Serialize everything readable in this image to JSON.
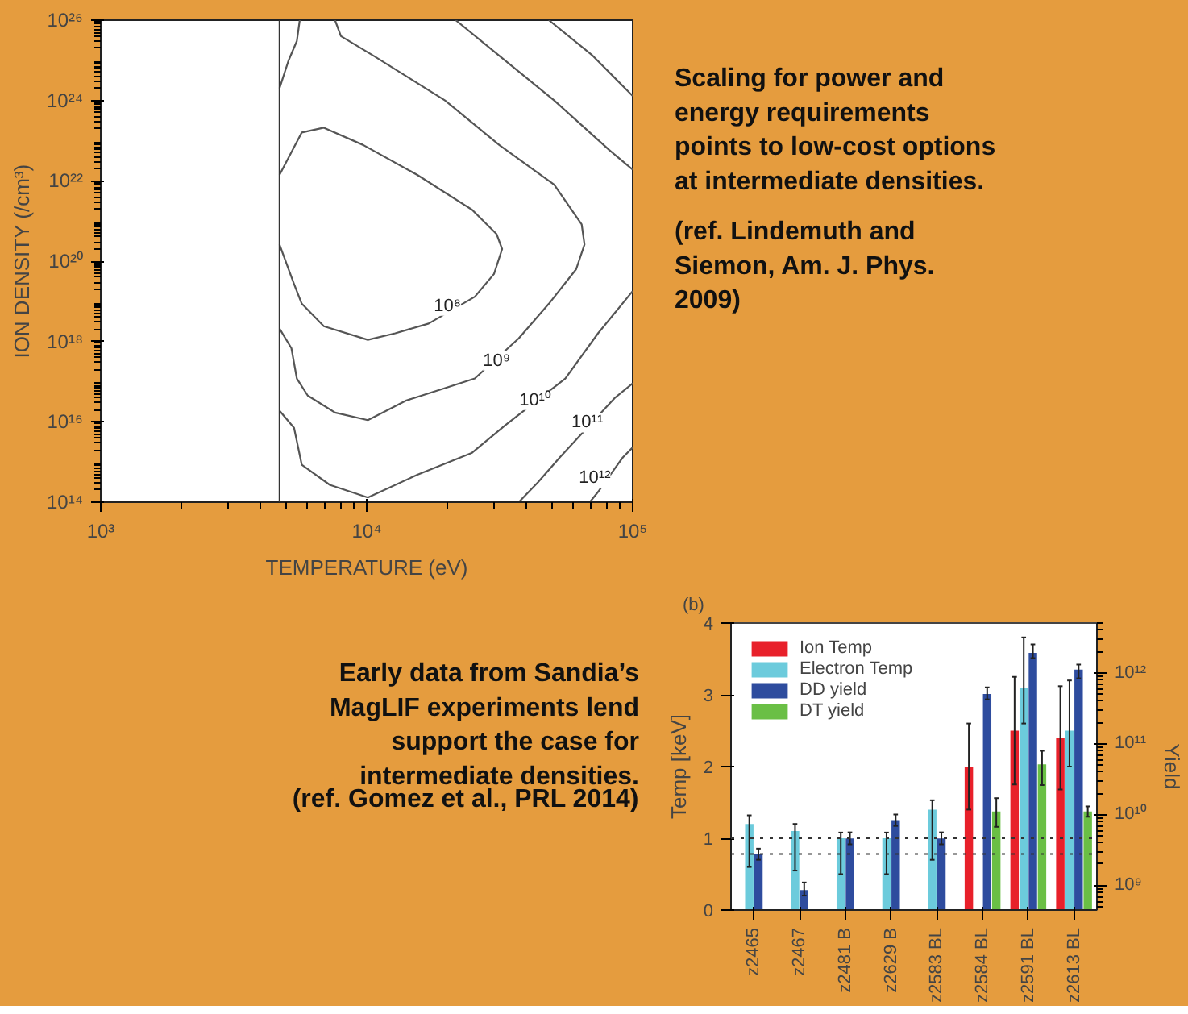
{
  "chart_data": [
    {
      "type": "line",
      "xlabel": "TEMPERATURE (eV)",
      "ylabel": "ION DENSITY (/cm³)",
      "log": "xy",
      "grid": false,
      "xlim": [
        1000,
        100000
      ],
      "ylim": [
        100000000000000.0,
        1e+26
      ],
      "xticks": [
        {
          "value": 1000,
          "label": "10³"
        },
        {
          "value": 10000,
          "label": "10⁴"
        },
        {
          "value": 100000,
          "label": "10⁵"
        }
      ],
      "yticks": [
        {
          "value": 100000000000000.0,
          "label": "10¹⁴"
        },
        {
          "value": 1e+16,
          "label": "10¹⁶"
        },
        {
          "value": 1e+18,
          "label": "10¹⁸"
        },
        {
          "value": 1e+20,
          "label": "10²⁰"
        },
        {
          "value": 1e+22,
          "label": "10²²"
        },
        {
          "value": 1e+24,
          "label": "10²⁴"
        },
        {
          "value": 1e+26,
          "label": "10²⁶"
        }
      ],
      "ref_lines": [
        {
          "axis": "x",
          "value": 4700,
          "color": "#333333"
        }
      ],
      "annotations": [
        {
          "text": "10⁸",
          "x": 20100,
          "y": 7.6e+18
        },
        {
          "text": "10⁹",
          "x": 30800,
          "y": 3.3e+17
        },
        {
          "text": "10¹⁰",
          "x": 43000,
          "y": 3.4e+16
        },
        {
          "text": "10¹¹",
          "x": 67500,
          "y": 9500000000000000.0
        },
        {
          "text": "10¹²",
          "x": 72000,
          "y": 400000000000000.0
        }
      ],
      "series": [
        {
          "color": "#555555",
          "x": [
            4700,
            5700,
            6900,
            9700,
            15500,
            24900,
            30800,
            32300,
            30100,
            25500,
            17100,
            12800,
            10100,
            6900,
            5700,
            5330,
            4700
          ],
          "values": [
            1.4e+22,
            1.6e+23,
            2.1e+23,
            7.8e+22,
            1.4e+22,
            1.9e+21,
            4.7e+20,
            2e+20,
            4.8e+19,
            1.3e+19,
            2.8e+18,
            1.6e+18,
            1.1e+18,
            2.4e+18,
            8.7e+18,
            2.7e+19,
            2.6e+20
          ]
        },
        {
          "color": "#555555",
          "x": [
            7600,
            8000,
            10600,
            19700,
            31500,
            50700,
            64300,
            65900,
            61300,
            48400,
            37300,
            25500,
            19700,
            14100,
            10100,
            7600,
            6000,
            5460,
            5210,
            4700
          ],
          "values": [
            1e+26,
            4e+25,
            1.3e+25,
            1e+24,
            7.8e+22,
            8e+21,
            8.2e+20,
            2.6e+20,
            6.3e+19,
            8.7e+18,
            1.2e+18,
            1.2e+17,
            6.9e+16,
            3.4e+16,
            1.1e+16,
            1.7e+16,
            4.5e+16,
            1.2e+17,
            6.8e+17,
            2.1e+18
          ]
        },
        {
          "color": "#555555",
          "x": [
            21600,
            31500,
            50700,
            81500,
            100000
          ],
          "values": [
            1e+26,
            1.3e+25,
            1e+24,
            5.9e+22,
            1.9e+22
          ]
        },
        {
          "color": "#555555",
          "x": [
            100000,
            74100,
            55800,
            33100,
            24900,
            15500,
            10100,
            7260,
            5700,
            5330,
            4700
          ],
          "values": [
            1.8e+19,
            1.6e+18,
            1.2e+17,
            8100000000000000.0,
            1700000000000000.0,
            480000000000000.0,
            130000000000000.0,
            270000000000000.0,
            850000000000000.0,
            7100000000000000.0,
            1.9e+16
          ]
        },
        {
          "color": "#555555",
          "x": [
            48400,
            70800,
            100000
          ],
          "values": [
            1e+26,
            1.3e+25,
            1.3e+24
          ]
        },
        {
          "color": "#555555",
          "x": [
            37300,
            44000,
            53200,
            85500,
            100000
          ],
          "values": [
            100000000000000.0,
            310000000000000.0,
            1300000000000000.0,
            3.9e+16,
            9.1e+16
          ]
        },
        {
          "color": "#555555",
          "x": [
            69000,
            74100,
            91800,
            100000
          ],
          "values": [
            100000000000000.0,
            180000000000000.0,
            1300000000000000.0,
            2300000000000000.0
          ]
        },
        {
          "color": "#555555",
          "x": [
            4700,
            5080,
            5460,
            5600
          ],
          "values": [
            2e+24,
            9.8e+24,
            3e+25,
            1e+26
          ]
        }
      ]
    },
    {
      "type": "other",
      "annotations": [
        "Scaling for power and\nenergy requirements\npoints to low-cost options\nat intermediate densities.",
        "(ref. Lindemuth and\nSiemon, Am. J. Phys.\n2009)"
      ]
    },
    {
      "type": "other",
      "annotations": [
        "Early data from Sandia’s\nMagLIF experiments lend\nsupport the case for\nintermediate densities.",
        "(ref. Gomez et al., PRL 2014)"
      ]
    },
    {
      "type": "bar",
      "annotations": [
        "(b)"
      ],
      "ylabel": "Temp [keV]",
      "y2label": "Yield",
      "grid": false,
      "legend": "top left",
      "categories": [
        "z2465",
        "z2467",
        "z2481 B",
        "z2629 B",
        "z2583 BL",
        "z2584 BL",
        "z2591 BL",
        "z2613 BL"
      ],
      "ylim": [
        0,
        4
      ],
      "yticks": [
        0,
        1,
        2,
        3,
        4
      ],
      "y2lim": [
        450000000.0,
        5000000000000.0
      ],
      "y2ticks": [
        {
          "value": 1000000000.0,
          "label": "10⁹"
        },
        {
          "value": 10000000000.0,
          "label": "10¹⁰"
        },
        {
          "value": 100000000000.0,
          "label": "10¹¹"
        },
        {
          "value": 1000000000000.0,
          "label": "10¹²"
        }
      ],
      "log": "y2",
      "ref_lines": [
        {
          "axis": "y",
          "value": 1.0,
          "line_style": "dotted",
          "color": "#333333"
        },
        {
          "axis": "y",
          "value": 0.78,
          "line_style": "dotted",
          "color": "#333333"
        }
      ],
      "series": [
        {
          "name": "Ion Temp",
          "color": "#e8202a",
          "values": [
            null,
            null,
            null,
            null,
            null,
            2.0,
            2.5,
            2.4
          ],
          "errors": [
            null,
            null,
            null,
            null,
            null,
            [
              1.4,
              2.6
            ],
            [
              1.75,
              3.25
            ],
            [
              1.68,
              3.12
            ]
          ]
        },
        {
          "name": "Electron Temp",
          "color": "#6ccbdc",
          "values": [
            1.2,
            1.1,
            1.0,
            1.0,
            1.4,
            null,
            3.1,
            2.5
          ],
          "errors": [
            [
              0.6,
              1.32
            ],
            [
              0.55,
              1.2
            ],
            [
              0.5,
              1.08
            ],
            [
              0.5,
              1.08
            ],
            [
              0.7,
              1.53
            ],
            null,
            [
              2.6,
              3.8
            ],
            [
              2.0,
              3.2
            ]
          ]
        },
        {
          "name": "DD yield",
          "color": "#2e4c9e",
          "axis": "y2",
          "values": [
            2800000000.0,
            860000000.0,
            4600000000.0,
            8300000000.0,
            4600000000.0,
            500000000000.0,
            1900000000000.0,
            1100000000000.0
          ],
          "errors": [
            [
              2300000000.0,
              3300000000.0
            ],
            [
              720000000.0,
              1100000000.0
            ],
            [
              3800000000.0,
              5600000000.0
            ],
            [
              6900000000.0,
              10000000000.0
            ],
            [
              3800000000.0,
              5600000000.0
            ],
            [
              420000000000.0,
              620000000000.0
            ],
            [
              1600000000000.0,
              2500000000000.0
            ],
            [
              830000000000.0,
              1300000000000.0
            ]
          ]
        },
        {
          "name": "DT yield",
          "color": "#6abf45",
          "axis": "y2",
          "values": [
            null,
            null,
            null,
            null,
            null,
            11000000000.0,
            51000000000.0,
            11000000000.0
          ],
          "errors": [
            null,
            null,
            null,
            null,
            null,
            [
              6700000000.0,
              17000000000.0
            ],
            [
              26000000000.0,
              79000000000.0
            ],
            [
              9300000000.0,
              13000000000.0
            ]
          ]
        }
      ]
    }
  ]
}
